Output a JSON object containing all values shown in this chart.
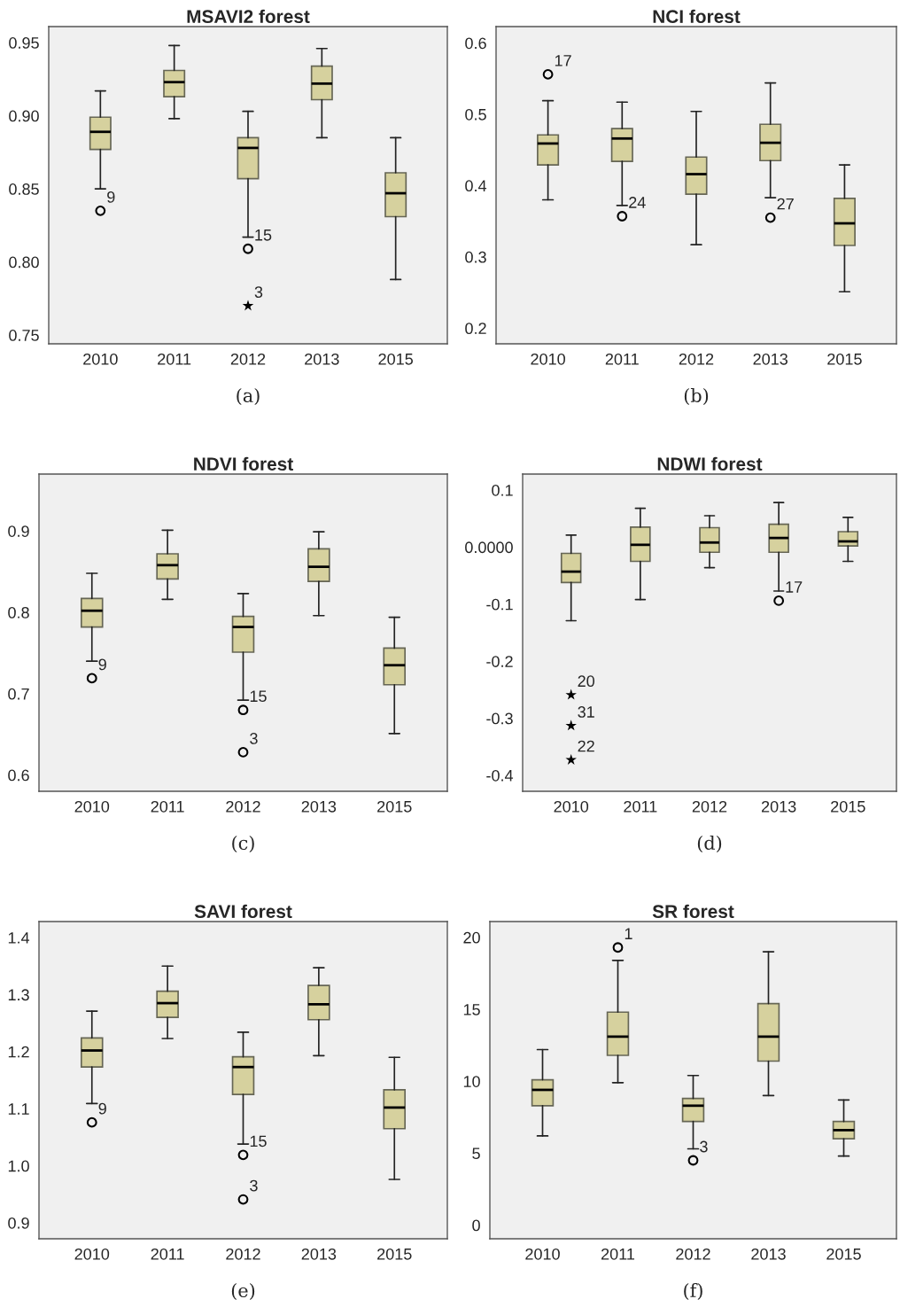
{
  "chart_data": [
    {
      "type": "box",
      "title": "MSAVI2 forest",
      "categories": [
        "2010",
        "2011",
        "2012",
        "2013",
        "2015"
      ],
      "ylim": [
        0.744,
        0.961
      ],
      "yticks": [
        0.95,
        {
          "value": 0.9,
          "label": "0.90"
        },
        0.85,
        {
          "value": 0.8,
          "label": "0.80"
        },
        0.75
      ],
      "series": [
        {
          "color": "#d6d19e",
          "boxes": [
            {
              "low": 0.85,
              "q1": 0.877,
              "median": 0.889,
              "q3": 0.899,
              "high": 0.917,
              "outliers": [
                0.835
              ]
            },
            {
              "low": 0.898,
              "q1": 0.913,
              "median": 0.923,
              "q3": 0.931,
              "high": 0.948
            },
            {
              "low": 0.817,
              "q1": 0.857,
              "median": 0.878,
              "q3": 0.885,
              "high": 0.903,
              "outliers": [
                0.809
              ]
            },
            {
              "low": 0.885,
              "q1": 0.911,
              "median": 0.922,
              "q3": 0.934,
              "high": 0.946
            },
            {
              "low": 0.788,
              "q1": 0.831,
              "median": 0.847,
              "q3": 0.861,
              "high": 0.885
            }
          ]
        },
        {
          "type": "scatter",
          "marker": "star",
          "color": "#000000",
          "values": [
            null,
            null,
            0.77,
            null,
            null
          ]
        }
      ],
      "annotations": [
        "9",
        "15",
        "3",
        "(a)"
      ]
    },
    {
      "type": "box",
      "title": "NCI forest",
      "categories": [
        "2010",
        "2011",
        "2012",
        "2013",
        "2015"
      ],
      "ylim": [
        0.178,
        0.623
      ],
      "yticks": [
        0.6,
        0.5,
        0.4,
        0.3,
        0.2
      ],
      "series": [
        {
          "color": "#d6d19e",
          "boxes": [
            {
              "low": 0.38,
              "q1": 0.429,
              "median": 0.459,
              "q3": 0.471,
              "high": 0.519,
              "outliers": [
                0.556
              ]
            },
            {
              "low": 0.372,
              "q1": 0.434,
              "median": 0.466,
              "q3": 0.48,
              "high": 0.517,
              "outliers": [
                0.357
              ]
            },
            {
              "low": 0.317,
              "q1": 0.388,
              "median": 0.416,
              "q3": 0.44,
              "high": 0.504
            },
            {
              "low": 0.383,
              "q1": 0.435,
              "median": 0.46,
              "q3": 0.486,
              "high": 0.544,
              "outliers": [
                0.355
              ]
            },
            {
              "low": 0.251,
              "q1": 0.316,
              "median": 0.347,
              "q3": 0.382,
              "high": 0.429
            }
          ]
        }
      ],
      "annotations": [
        "17",
        "24",
        "27",
        "(b)"
      ]
    },
    {
      "type": "box",
      "title": "NDVI forest",
      "categories": [
        "2010",
        "2011",
        "2012",
        "2013",
        "2015"
      ],
      "ylim": [
        0.58,
        0.97
      ],
      "yticks": [
        0.9,
        0.8,
        0.7,
        0.6
      ],
      "series": [
        {
          "color": "#d6d19e",
          "boxes": [
            {
              "low": 0.74,
              "q1": 0.782,
              "median": 0.802,
              "q3": 0.817,
              "high": 0.848,
              "outliers": [
                0.719
              ]
            },
            {
              "low": 0.816,
              "q1": 0.841,
              "median": 0.858,
              "q3": 0.872,
              "high": 0.901
            },
            {
              "low": 0.692,
              "q1": 0.751,
              "median": 0.782,
              "q3": 0.795,
              "high": 0.823,
              "outliers": [
                0.68,
                0.628
              ]
            },
            {
              "low": 0.796,
              "q1": 0.838,
              "median": 0.856,
              "q3": 0.878,
              "high": 0.899
            },
            {
              "low": 0.651,
              "q1": 0.711,
              "median": 0.735,
              "q3": 0.756,
              "high": 0.794
            }
          ]
        }
      ],
      "annotations": [
        "9",
        "15",
        "3",
        "(c)"
      ]
    },
    {
      "type": "box",
      "title": "NDWI forest",
      "categories": [
        "2010",
        "2011",
        "2012",
        "2013",
        "2015"
      ],
      "ylim": [
        -0.428,
        0.128
      ],
      "yticks": [
        0.1,
        {
          "value": 0,
          "label": "0.0000"
        },
        -0.1,
        -0.2,
        -0.3,
        -0.4
      ],
      "series": [
        {
          "color": "#d6d19e",
          "boxes": [
            {
              "low": -0.129,
              "q1": -0.062,
              "median": -0.043,
              "q3": -0.011,
              "high": 0.021
            },
            {
              "low": -0.092,
              "q1": -0.025,
              "median": 0.004,
              "q3": 0.035,
              "high": 0.068
            },
            {
              "low": -0.036,
              "q1": -0.009,
              "median": 0.008,
              "q3": 0.034,
              "high": 0.055
            },
            {
              "low": -0.077,
              "q1": -0.009,
              "median": 0.016,
              "q3": 0.04,
              "high": 0.078,
              "outliers": [
                -0.094
              ]
            },
            {
              "low": -0.025,
              "q1": 0.002,
              "median": 0.01,
              "q3": 0.027,
              "high": 0.052
            }
          ]
        },
        {
          "type": "scatter",
          "marker": "star",
          "color": "#000000",
          "values": [
            -0.259,
            null,
            null,
            null,
            null
          ]
        },
        {
          "type": "scatter",
          "marker": "star",
          "color": "#000000",
          "values": [
            -0.313,
            null,
            null,
            null,
            null
          ]
        },
        {
          "type": "scatter",
          "marker": "star",
          "color": "#000000",
          "values": [
            -0.373,
            null,
            null,
            null,
            null
          ]
        }
      ],
      "annotations": [
        "17",
        "20",
        "31",
        "22",
        "(d)"
      ]
    },
    {
      "type": "box",
      "title": "SAVI forest",
      "categories": [
        "2010",
        "2011",
        "2012",
        "2013",
        "2015"
      ],
      "ylim": [
        0.872,
        1.428
      ],
      "yticks": [
        1.4,
        1.3,
        1.2,
        1.1,
        {
          "value": 1.0,
          "label": "1.0"
        },
        0.9
      ],
      "series": [
        {
          "color": "#d6d19e",
          "boxes": [
            {
              "low": 1.109,
              "q1": 1.173,
              "median": 1.202,
              "q3": 1.224,
              "high": 1.271,
              "outliers": [
                1.076
              ]
            },
            {
              "low": 1.223,
              "q1": 1.26,
              "median": 1.285,
              "q3": 1.306,
              "high": 1.35
            },
            {
              "low": 1.038,
              "q1": 1.125,
              "median": 1.173,
              "q3": 1.191,
              "high": 1.234,
              "outliers": [
                1.019,
                0.941
              ]
            },
            {
              "low": 1.193,
              "q1": 1.256,
              "median": 1.283,
              "q3": 1.316,
              "high": 1.347
            },
            {
              "low": 0.976,
              "q1": 1.065,
              "median": 1.102,
              "q3": 1.133,
              "high": 1.19
            }
          ]
        }
      ],
      "annotations": [
        "9",
        "15",
        "3",
        "(e)"
      ]
    },
    {
      "type": "box",
      "title": "SR forest",
      "categories": [
        "2010",
        "2011",
        "2012",
        "2013",
        "2015"
      ],
      "ylim": [
        -0.95,
        21.1
      ],
      "yticks": [
        20,
        15,
        10,
        5,
        0
      ],
      "series": [
        {
          "color": "#d6d19e",
          "boxes": [
            {
              "low": 6.2,
              "q1": 8.3,
              "median": 9.4,
              "q3": 10.1,
              "high": 12.2
            },
            {
              "low": 9.9,
              "q1": 11.8,
              "median": 13.1,
              "q3": 14.8,
              "high": 18.4,
              "outliers": [
                19.3
              ]
            },
            {
              "low": 5.3,
              "q1": 7.2,
              "median": 8.3,
              "q3": 8.8,
              "high": 10.4,
              "outliers": [
                4.5
              ]
            },
            {
              "low": 9.0,
              "q1": 11.4,
              "median": 13.1,
              "q3": 15.4,
              "high": 19.0
            },
            {
              "low": 4.8,
              "q1": 6.0,
              "median": 6.6,
              "q3": 7.2,
              "high": 8.7
            }
          ]
        }
      ],
      "annotations": [
        "1",
        "3",
        "(f)"
      ]
    }
  ]
}
